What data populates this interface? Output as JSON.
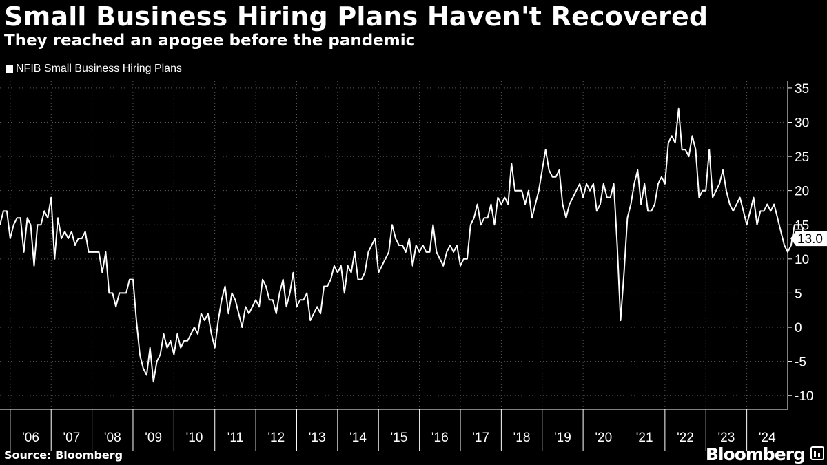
{
  "chart_data": {
    "type": "line",
    "title": "Small Business Hiring Plans Haven't Recovered",
    "subtitle": "They reached an apogee before the pandemic",
    "legend": [
      "NFIB Small Business Hiring Plans"
    ],
    "legend_position": "top-left",
    "source": "Source: Bloomberg",
    "brand": "Bloomberg",
    "ylim": [
      -12,
      36
    ],
    "yticks": [
      35,
      30,
      25,
      20,
      15,
      10,
      5,
      0,
      -5,
      -10
    ],
    "ytick_labels": [
      "35",
      "30",
      "25",
      "20",
      "15",
      "10",
      "5",
      "0",
      "-5",
      "-10"
    ],
    "xticks": [
      "'06",
      "'07",
      "'08",
      "'09",
      "'10",
      "'11",
      "'12",
      "'13",
      "'14",
      "'15",
      "'16",
      "'17",
      "'18",
      "'19",
      "'20",
      "'21",
      "'22",
      "'23",
      "'24"
    ],
    "x_start_year": 2005.75,
    "x_end_year": 2025.0,
    "last_value_label": "13.0",
    "series": [
      {
        "name": "NFIB Small Business Hiring Plans",
        "color": "#ffffff",
        "start": 2005.75,
        "step_months": 1,
        "values": [
          15,
          17,
          17,
          13,
          15,
          16,
          16,
          11,
          16,
          15,
          9,
          15,
          15,
          17,
          16,
          19,
          10,
          16,
          13,
          14,
          13,
          14,
          12,
          13,
          13,
          14,
          11,
          11,
          11,
          11,
          8,
          11,
          5,
          5,
          3,
          5,
          5,
          5,
          7,
          7,
          1,
          -4,
          -6,
          -7,
          -3,
          -8,
          -5,
          -4,
          -1,
          -3,
          -2,
          -4,
          -1,
          -3,
          -2,
          -2,
          -1,
          0,
          -1,
          2,
          1,
          2,
          -1,
          -3,
          1,
          4,
          6,
          2,
          5,
          4,
          2,
          0,
          3,
          2,
          3,
          4,
          3,
          7,
          6,
          4,
          4,
          2,
          5,
          7,
          3,
          5,
          8,
          3,
          4,
          4,
          5,
          1,
          2,
          3,
          2,
          6,
          6,
          7,
          9,
          8,
          9,
          5,
          9,
          8,
          11,
          7,
          7,
          8,
          11,
          12,
          13,
          8,
          9,
          10,
          11,
          15,
          13,
          12,
          12,
          11,
          13,
          9,
          12,
          11,
          12,
          11,
          11,
          15,
          11,
          10,
          9,
          11,
          12,
          11,
          12,
          9,
          10,
          10,
          15,
          16,
          18,
          15,
          16,
          16,
          18,
          15,
          19,
          18,
          19,
          18,
          24,
          20,
          20,
          20,
          18,
          20,
          16,
          18,
          20,
          23,
          26,
          23,
          22,
          22,
          23,
          18,
          16,
          18,
          19,
          20,
          21,
          19,
          21,
          20,
          21,
          17,
          18,
          21,
          19,
          19,
          21,
          12,
          1,
          8,
          16,
          18,
          21,
          23,
          18,
          21,
          17,
          17,
          18,
          21,
          22,
          21,
          27,
          28,
          27,
          32,
          26,
          26,
          25,
          28,
          26,
          19,
          20,
          20,
          26,
          19,
          20,
          21,
          23,
          20,
          18,
          17,
          18,
          19,
          17,
          15,
          17,
          19,
          15,
          17,
          17,
          18,
          17,
          18,
          16,
          14,
          12,
          11,
          12,
          15,
          15,
          15,
          13
        ]
      }
    ]
  }
}
